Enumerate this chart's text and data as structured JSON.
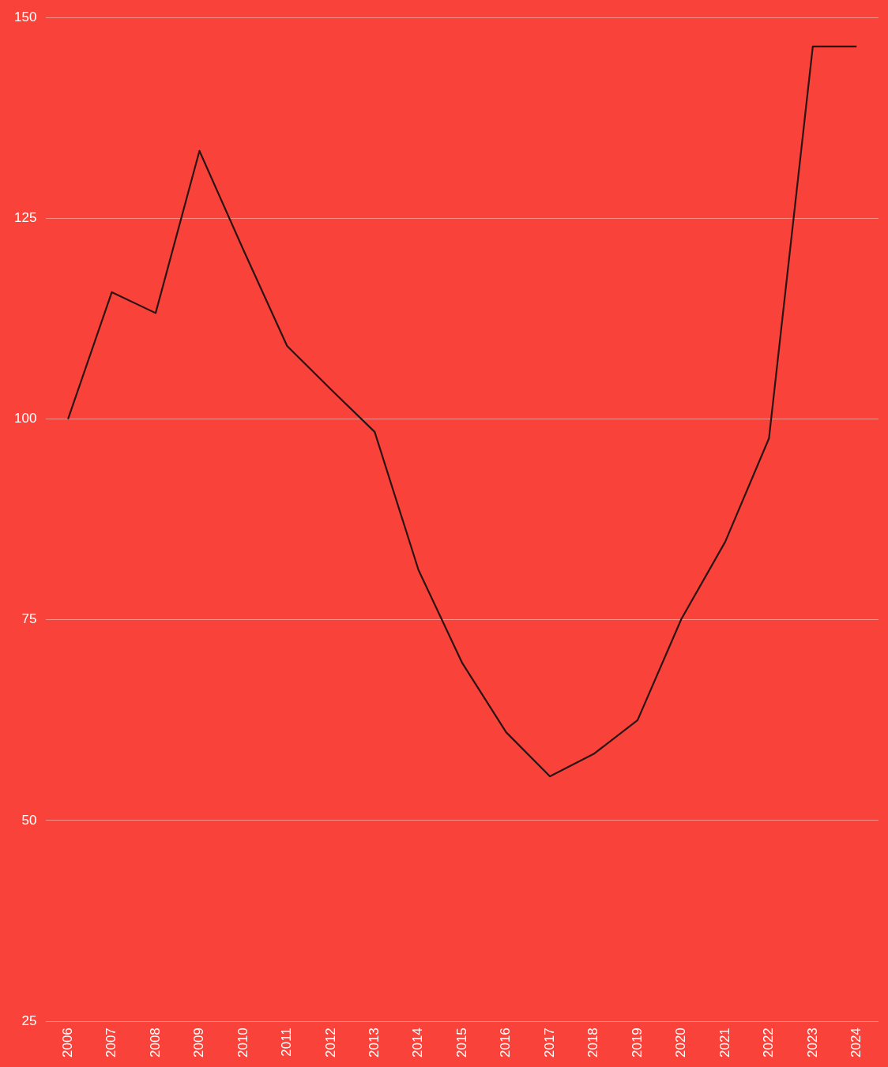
{
  "chart_data": {
    "type": "line",
    "categories": [
      "2006",
      "2007",
      "2008",
      "2009",
      "2010",
      "2011",
      "2012",
      "2013",
      "2014",
      "2015",
      "2016",
      "2017",
      "2018",
      "2019",
      "2020",
      "2021",
      "2022",
      "2023",
      "2024"
    ],
    "values": [
      100,
      115.8,
      113.2,
      133.4,
      121.1,
      109.1,
      103.7,
      98.4,
      81.2,
      69.6,
      61.0,
      55.5,
      58.3,
      62.5,
      75.1,
      84.7,
      97.6,
      146.4,
      146.4
    ],
    "color": "#2a1414",
    "ylim": [
      25,
      150
    ],
    "yticks": [
      25,
      50,
      75,
      100,
      125,
      150
    ],
    "grid": "y",
    "marker": "none",
    "line_style": "solid"
  }
}
